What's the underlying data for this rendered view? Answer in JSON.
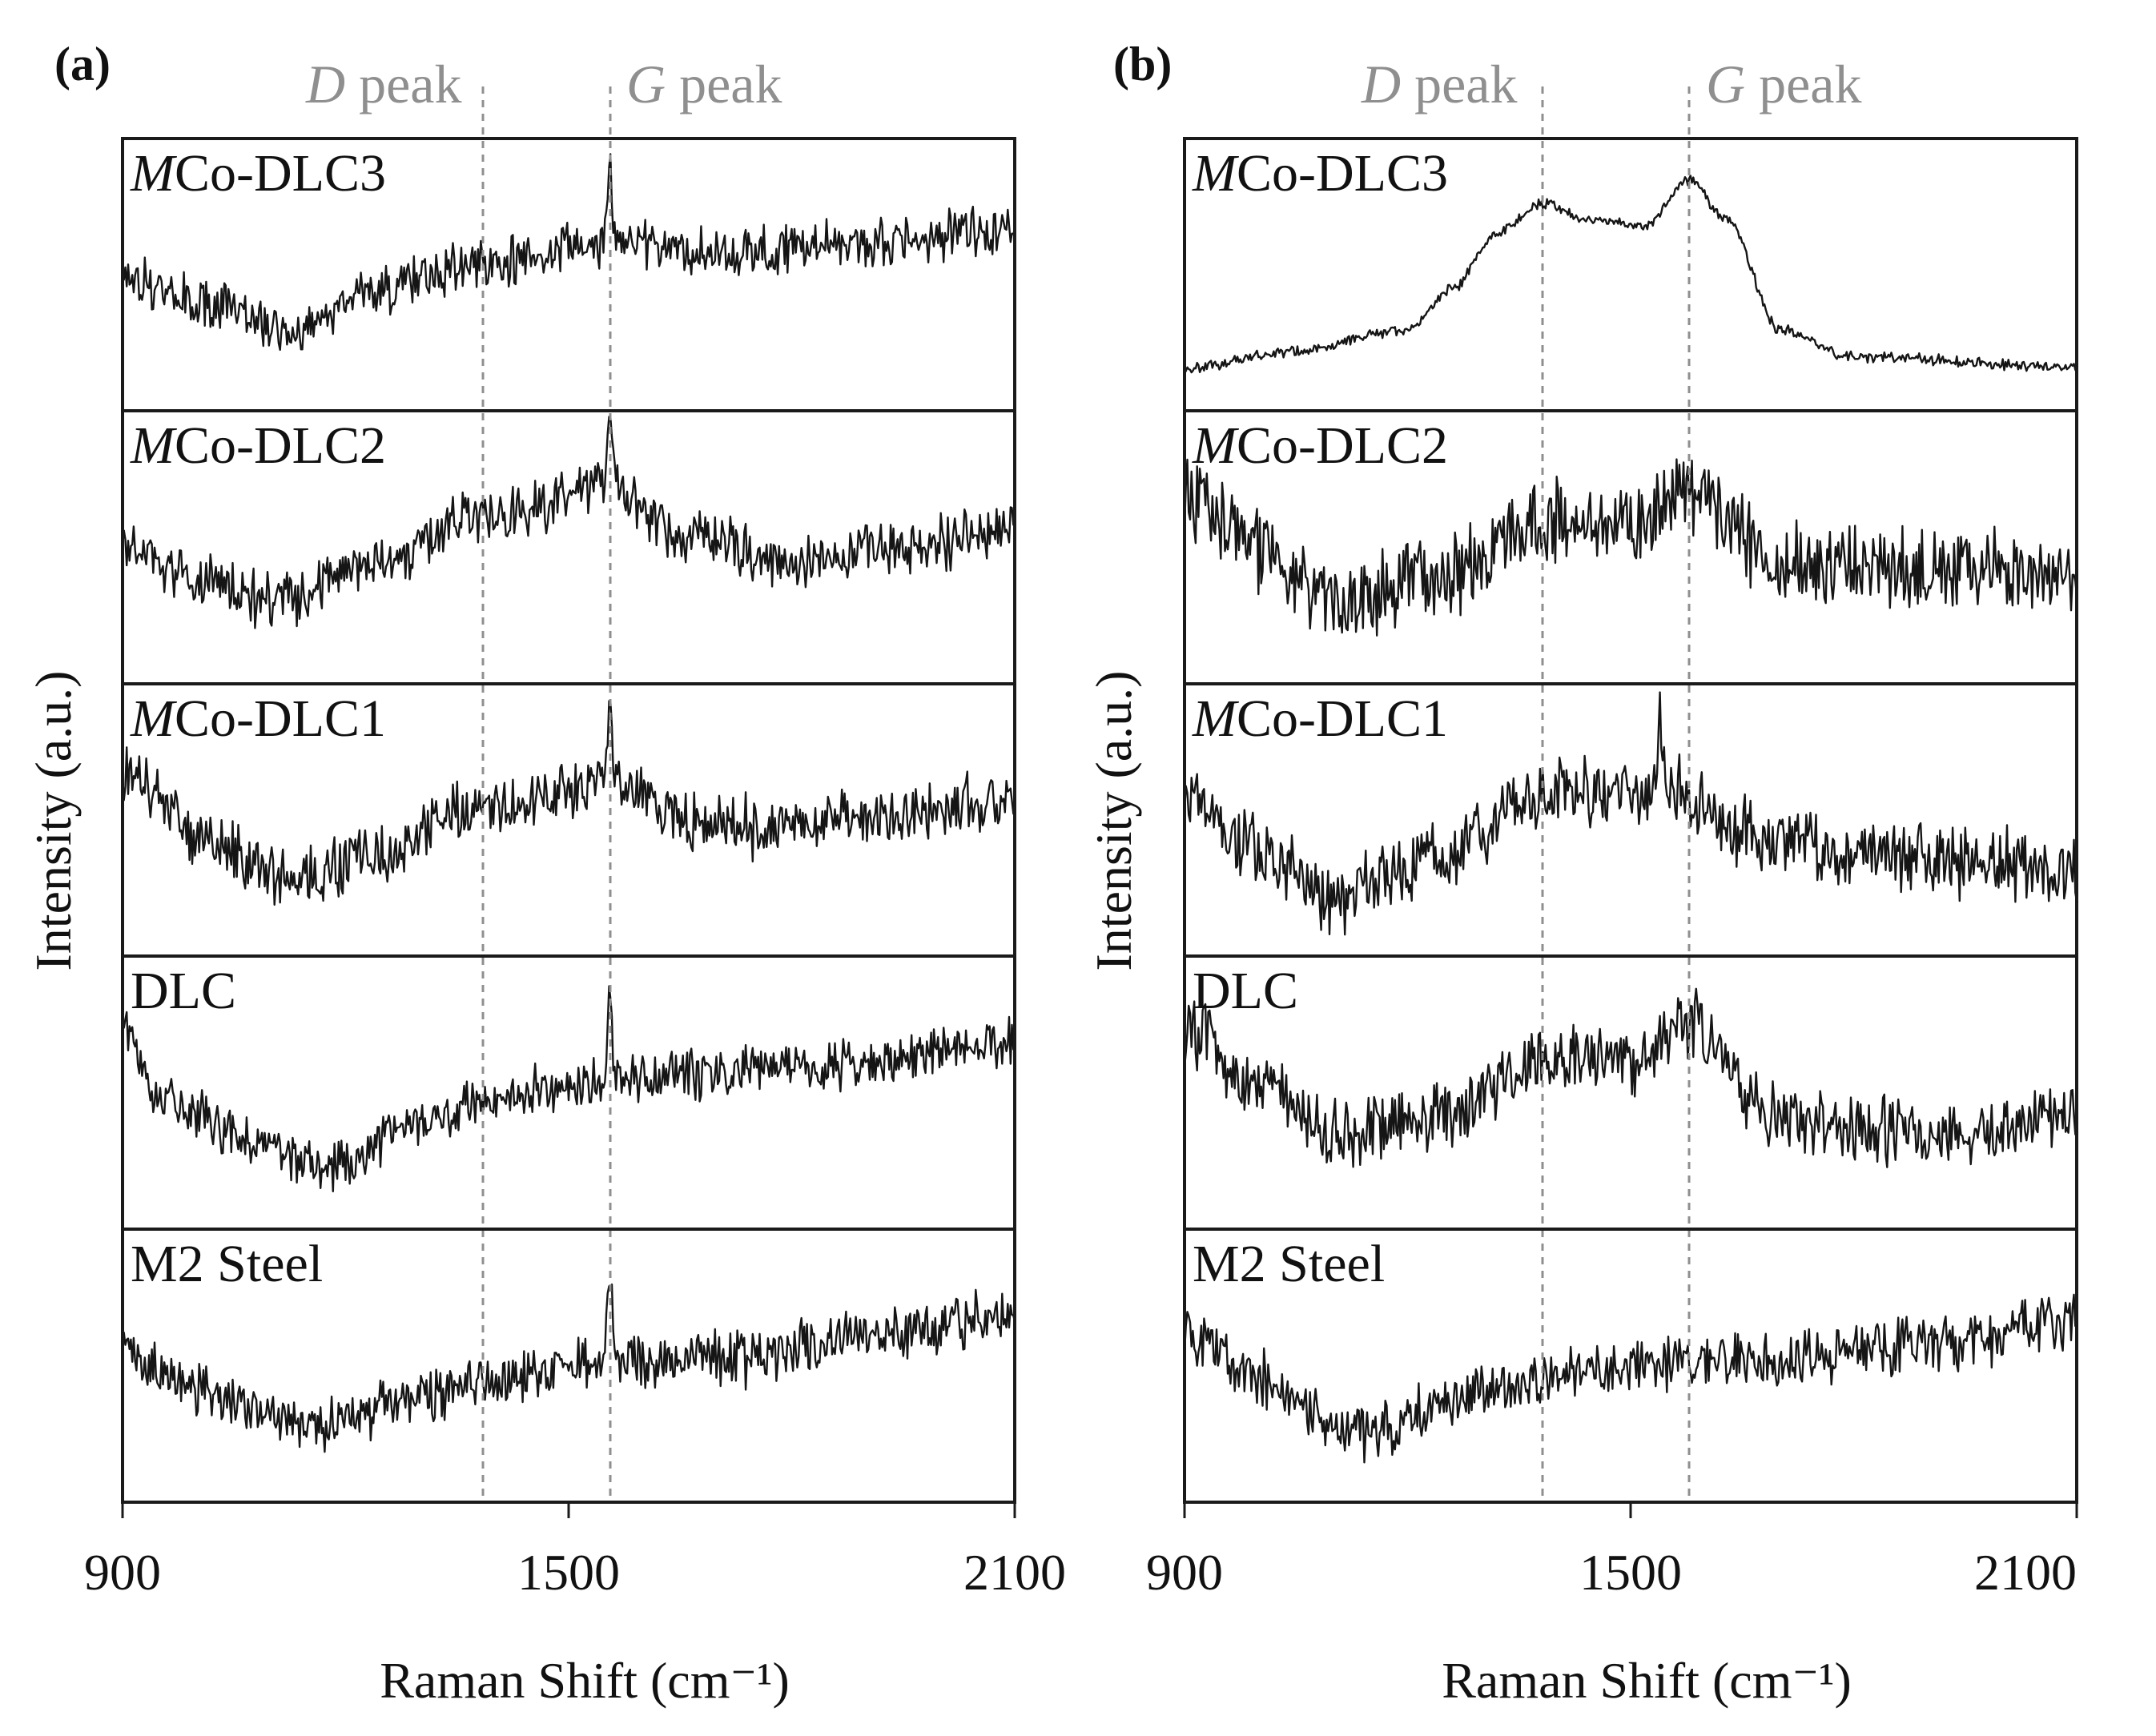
{
  "chart_data": [
    {
      "panel": "(a)",
      "type": "line",
      "xlabel": "Raman Shift (cm⁻¹)",
      "ylabel": "Intensity (a.u.)",
      "xlim": [
        900,
        2100
      ],
      "xticks": [
        "900",
        "1500",
        "2100"
      ],
      "reference_lines": [
        {
          "label_italic": "D",
          "label_rest": " peak",
          "x": 1385
        },
        {
          "label_italic": "G",
          "label_rest": " peak",
          "x": 1555
        }
      ],
      "series": [
        {
          "label_italic": "M",
          "label_rest": "Co-DLC3",
          "baseline": [
            [
              900,
              0.5
            ],
            [
              1000,
              0.4
            ],
            [
              1120,
              0.3
            ],
            [
              1250,
              0.45
            ],
            [
              1385,
              0.55
            ],
            [
              1555,
              0.62
            ],
            [
              1700,
              0.58
            ],
            [
              1900,
              0.62
            ],
            [
              2100,
              0.67
            ]
          ],
          "peaks": [
            {
              "x": 1555,
              "height": 0.3,
              "width": 4
            }
          ],
          "noise": 0.07
        },
        {
          "label_italic": "M",
          "label_rest": "Co-DLC2",
          "baseline": [
            [
              900,
              0.5
            ],
            [
              1000,
              0.38
            ],
            [
              1100,
              0.3
            ],
            [
              1250,
              0.45
            ],
            [
              1385,
              0.62
            ],
            [
              1555,
              0.72
            ],
            [
              1650,
              0.55
            ],
            [
              1800,
              0.45
            ],
            [
              1950,
              0.5
            ],
            [
              2100,
              0.58
            ]
          ],
          "peaks": [
            {
              "x": 1555,
              "height": 0.28,
              "width": 5
            }
          ],
          "noise": 0.08
        },
        {
          "label_italic": "M",
          "label_rest": "Co-DLC1",
          "baseline": [
            [
              900,
              0.68
            ],
            [
              1000,
              0.45
            ],
            [
              1130,
              0.28
            ],
            [
              1250,
              0.38
            ],
            [
              1385,
              0.55
            ],
            [
              1555,
              0.62
            ],
            [
              1700,
              0.48
            ],
            [
              1900,
              0.5
            ],
            [
              2100,
              0.58
            ]
          ],
          "peaks": [
            {
              "x": 1555,
              "height": 0.3,
              "width": 5
            }
          ],
          "noise": 0.09
        },
        {
          "label_italic": "",
          "label_rest": "DLC",
          "baseline": [
            [
              900,
              0.75
            ],
            [
              950,
              0.5
            ],
            [
              1050,
              0.35
            ],
            [
              1170,
              0.22
            ],
            [
              1300,
              0.38
            ],
            [
              1385,
              0.48
            ],
            [
              1555,
              0.55
            ],
            [
              1800,
              0.58
            ],
            [
              2100,
              0.68
            ]
          ],
          "peaks": [
            {
              "x": 1555,
              "height": 0.35,
              "width": 4
            }
          ],
          "noise": 0.07
        },
        {
          "label_italic": "",
          "label_rest": "M2 Steel",
          "baseline": [
            [
              900,
              0.55
            ],
            [
              1000,
              0.42
            ],
            [
              1150,
              0.28
            ],
            [
              1300,
              0.38
            ],
            [
              1385,
              0.45
            ],
            [
              1555,
              0.52
            ],
            [
              1700,
              0.52
            ],
            [
              1900,
              0.62
            ],
            [
              2100,
              0.68
            ]
          ],
          "peaks": [
            {
              "x": 1555,
              "height": 0.38,
              "width": 4
            }
          ],
          "noise": 0.08
        }
      ]
    },
    {
      "panel": "(b)",
      "type": "line",
      "xlabel": "Raman Shift (cm⁻¹)",
      "ylabel": "Intensity (a.u.)",
      "xlim": [
        900,
        2100
      ],
      "xticks": [
        "900",
        "1500",
        "2100"
      ],
      "reference_lines": [
        {
          "label_italic": "D",
          "label_rest": " peak",
          "x": 1380
        },
        {
          "label_italic": "G",
          "label_rest": " peak",
          "x": 1578
        }
      ],
      "series": [
        {
          "label_italic": "M",
          "label_rest": "Co-DLC3",
          "baseline": [
            [
              900,
              0.16
            ],
            [
              1050,
              0.22
            ],
            [
              1200,
              0.3
            ],
            [
              1260,
              0.45
            ],
            [
              1320,
              0.65
            ],
            [
              1380,
              0.76
            ],
            [
              1450,
              0.7
            ],
            [
              1520,
              0.68
            ],
            [
              1578,
              0.85
            ],
            [
              1630,
              0.7
            ],
            [
              1700,
              0.3
            ],
            [
              1800,
              0.2
            ],
            [
              2100,
              0.16
            ]
          ],
          "peaks": [],
          "noise": 0.015
        },
        {
          "label_italic": "M",
          "label_rest": "Co-DLC2",
          "baseline": [
            [
              900,
              0.7
            ],
            [
              1000,
              0.5
            ],
            [
              1100,
              0.28
            ],
            [
              1250,
              0.4
            ],
            [
              1385,
              0.6
            ],
            [
              1500,
              0.58
            ],
            [
              1578,
              0.72
            ],
            [
              1700,
              0.45
            ],
            [
              1900,
              0.42
            ],
            [
              2100,
              0.4
            ]
          ],
          "peaks": [],
          "noise": 0.12
        },
        {
          "label_italic": "M",
          "label_rest": "Co-DLC1",
          "baseline": [
            [
              900,
              0.6
            ],
            [
              1000,
              0.4
            ],
            [
              1100,
              0.22
            ],
            [
              1250,
              0.38
            ],
            [
              1385,
              0.6
            ],
            [
              1560,
              0.62
            ],
            [
              1650,
              0.45
            ],
            [
              1800,
              0.38
            ],
            [
              2100,
              0.32
            ]
          ],
          "peaks": [
            {
              "x": 1540,
              "height": 0.25,
              "width": 4
            }
          ],
          "noise": 0.1
        },
        {
          "label_italic": "",
          "label_rest": "DLC",
          "baseline": [
            [
              900,
              0.72
            ],
            [
              1000,
              0.55
            ],
            [
              1100,
              0.35
            ],
            [
              1250,
              0.42
            ],
            [
              1385,
              0.62
            ],
            [
              1500,
              0.62
            ],
            [
              1578,
              0.75
            ],
            [
              1700,
              0.4
            ],
            [
              1900,
              0.35
            ],
            [
              2100,
              0.4
            ]
          ],
          "peaks": [],
          "noise": 0.1
        },
        {
          "label_italic": "",
          "label_rest": "M2 Steel",
          "baseline": [
            [
              900,
              0.62
            ],
            [
              1000,
              0.45
            ],
            [
              1130,
              0.25
            ],
            [
              1300,
              0.4
            ],
            [
              1500,
              0.5
            ],
            [
              1700,
              0.52
            ],
            [
              1900,
              0.58
            ],
            [
              2100,
              0.66
            ]
          ],
          "peaks": [],
          "noise": 0.08
        }
      ]
    }
  ]
}
